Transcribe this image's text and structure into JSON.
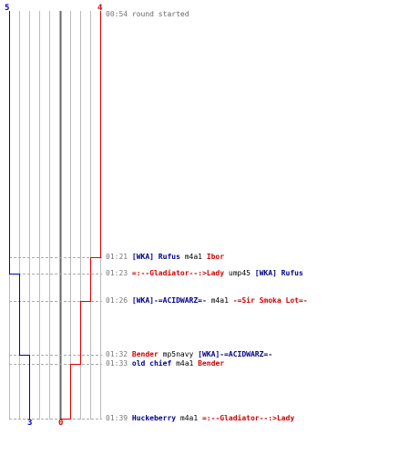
{
  "score": {
    "blue_start": "5",
    "red_start": "4",
    "blue_end": "3",
    "red_end": "0",
    "blue_color": "#0000cc",
    "red_color": "#dd0000"
  },
  "events": [
    {
      "time": "00:54",
      "parts": [
        {
          "text": "round started",
          "cls": "plain"
        }
      ],
      "blue_remaining": 5,
      "red_remaining": 4
    },
    {
      "time": "01:21",
      "parts": [
        {
          "text": "[WKA] Rufus",
          "cls": "blue"
        },
        {
          "text": "m4a1",
          "cls": "wpn"
        },
        {
          "text": "Ibor",
          "cls": "red"
        }
      ],
      "blue_remaining": 5,
      "red_remaining": 3
    },
    {
      "time": "01:23",
      "parts": [
        {
          "text": "=:--Gladiator--:>Lady",
          "cls": "red"
        },
        {
          "text": "ump45",
          "cls": "wpn"
        },
        {
          "text": "[WKA] Rufus",
          "cls": "blue"
        }
      ],
      "blue_remaining": 4,
      "red_remaining": 3
    },
    {
      "time": "01:26",
      "parts": [
        {
          "text": "[WKA]-=ACIDWARZ=-",
          "cls": "blue"
        },
        {
          "text": "m4a1",
          "cls": "wpn"
        },
        {
          "text": "-=Sir Smoka Lot=-",
          "cls": "red"
        }
      ],
      "blue_remaining": 4,
      "red_remaining": 2
    },
    {
      "time": "01:32",
      "parts": [
        {
          "text": "Bender",
          "cls": "red"
        },
        {
          "text": "mp5navy",
          "cls": "wpn"
        },
        {
          "text": "[WKA]-=ACIDWARZ=-",
          "cls": "blue"
        }
      ],
      "blue_remaining": 3,
      "red_remaining": 2
    },
    {
      "time": "01:33",
      "parts": [
        {
          "text": "old chief",
          "cls": "blue"
        },
        {
          "text": "m4a1",
          "cls": "wpn"
        },
        {
          "text": "Bender",
          "cls": "red"
        }
      ],
      "blue_remaining": 3,
      "red_remaining": 1
    },
    {
      "time": "01:39",
      "parts": [
        {
          "text": "Huckeberry",
          "cls": "blue"
        },
        {
          "text": "m4a1",
          "cls": "wpn"
        },
        {
          "text": "=:--Gladiator--:>Lady",
          "cls": "red"
        }
      ],
      "blue_remaining": 3,
      "red_remaining": 0
    }
  ]
}
